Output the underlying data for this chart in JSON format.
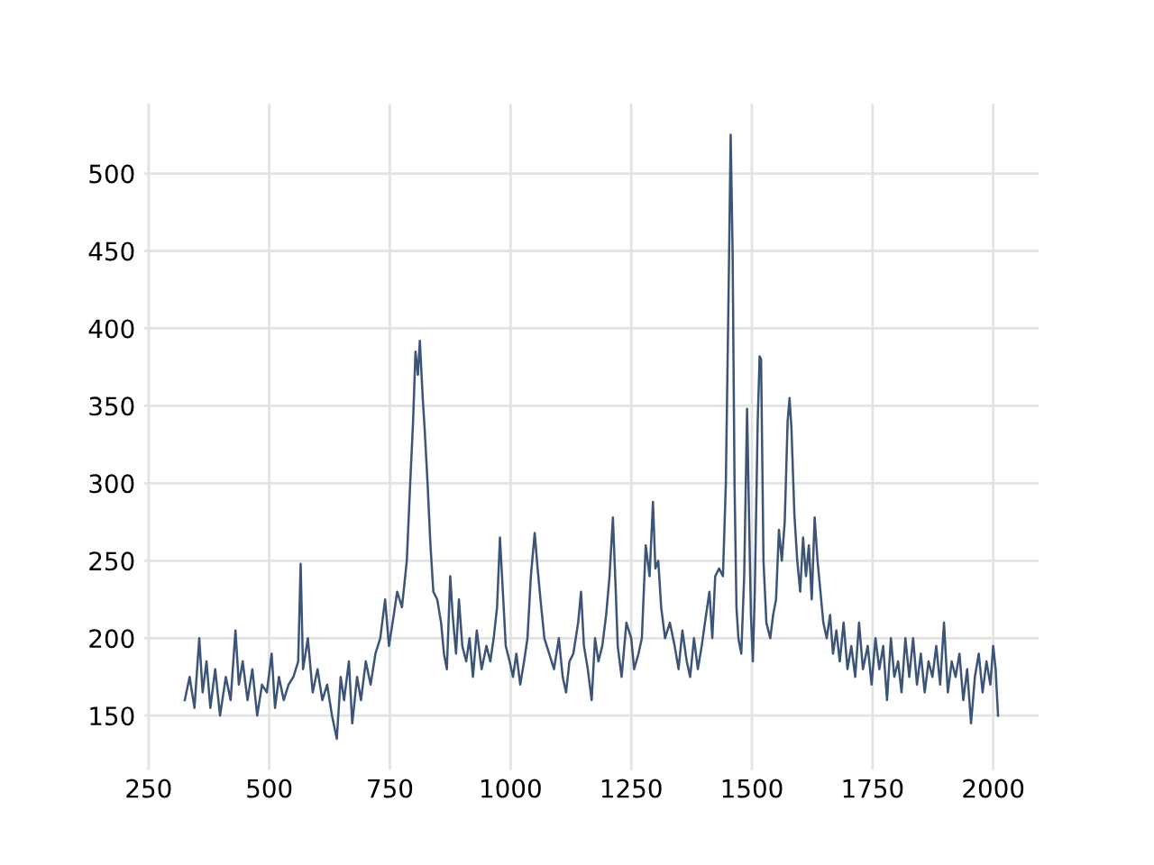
{
  "chart_data": {
    "type": "line",
    "x": [
      325,
      335,
      345,
      355,
      362,
      370,
      378,
      388,
      398,
      410,
      420,
      430,
      437,
      445,
      455,
      465,
      475,
      485,
      495,
      505,
      512,
      520,
      530,
      540,
      550,
      560,
      565,
      570,
      580,
      590,
      600,
      610,
      620,
      630,
      640,
      648,
      655,
      665,
      672,
      682,
      690,
      700,
      710,
      720,
      730,
      740,
      748,
      758,
      765,
      775,
      785,
      792,
      798,
      803,
      808,
      812,
      818,
      822,
      828,
      834,
      840,
      848,
      856,
      862,
      868,
      875,
      880,
      887,
      893,
      900,
      908,
      915,
      922,
      930,
      940,
      950,
      958,
      965,
      972,
      978,
      984,
      990,
      998,
      1005,
      1012,
      1020,
      1028,
      1035,
      1042,
      1050,
      1056,
      1062,
      1070,
      1080,
      1090,
      1100,
      1108,
      1115,
      1122,
      1130,
      1140,
      1146,
      1152,
      1160,
      1168,
      1175,
      1182,
      1190,
      1198,
      1205,
      1212,
      1218,
      1222,
      1230,
      1240,
      1250,
      1256,
      1265,
      1272,
      1280,
      1288,
      1295,
      1300,
      1306,
      1312,
      1320,
      1330,
      1340,
      1348,
      1356,
      1365,
      1372,
      1380,
      1388,
      1396,
      1405,
      1412,
      1418,
      1424,
      1432,
      1440,
      1446,
      1452,
      1456,
      1460,
      1464,
      1468,
      1472,
      1478,
      1484,
      1490,
      1494,
      1498,
      1502,
      1506,
      1512,
      1516,
      1519,
      1524,
      1530,
      1538,
      1544,
      1550,
      1556,
      1562,
      1568,
      1574,
      1578,
      1582,
      1588,
      1594,
      1600,
      1606,
      1612,
      1618,
      1624,
      1630,
      1636,
      1642,
      1648,
      1655,
      1662,
      1668,
      1675,
      1682,
      1690,
      1698,
      1706,
      1714,
      1722,
      1730,
      1740,
      1748,
      1756,
      1764,
      1772,
      1780,
      1788,
      1795,
      1803,
      1810,
      1818,
      1826,
      1834,
      1842,
      1850,
      1858,
      1866,
      1874,
      1882,
      1890,
      1898,
      1906,
      1914,
      1922,
      1930,
      1938,
      1946,
      1954,
      1962,
      1970,
      1978,
      1986,
      1994,
      2000,
      2005,
      2010
    ],
    "series": [
      {
        "color": "#3b5478",
        "values": [
          160,
          175,
          155,
          200,
          165,
          185,
          155,
          180,
          150,
          175,
          160,
          205,
          170,
          185,
          160,
          180,
          150,
          170,
          165,
          190,
          155,
          175,
          160,
          170,
          175,
          185,
          248,
          180,
          200,
          165,
          180,
          160,
          170,
          150,
          135,
          175,
          160,
          185,
          145,
          175,
          160,
          185,
          170,
          190,
          200,
          225,
          195,
          215,
          230,
          220,
          250,
          300,
          340,
          385,
          370,
          392,
          355,
          335,
          300,
          260,
          230,
          225,
          210,
          190,
          180,
          240,
          215,
          190,
          225,
          195,
          185,
          200,
          175,
          205,
          180,
          195,
          185,
          200,
          220,
          265,
          230,
          195,
          185,
          175,
          190,
          170,
          185,
          200,
          240,
          268,
          245,
          225,
          200,
          190,
          180,
          200,
          175,
          165,
          185,
          190,
          210,
          230,
          195,
          180,
          160,
          200,
          185,
          195,
          215,
          240,
          278,
          230,
          195,
          175,
          210,
          200,
          180,
          190,
          200,
          260,
          240,
          288,
          245,
          250,
          220,
          200,
          210,
          195,
          180,
          205,
          185,
          175,
          200,
          180,
          195,
          215,
          230,
          200,
          240,
          245,
          240,
          300,
          430,
          525,
          450,
          300,
          220,
          200,
          190,
          240,
          348,
          280,
          215,
          185,
          230,
          340,
          382,
          380,
          250,
          210,
          200,
          215,
          225,
          270,
          250,
          275,
          340,
          355,
          335,
          280,
          250,
          230,
          265,
          240,
          260,
          225,
          278,
          250,
          230,
          210,
          200,
          215,
          190,
          205,
          185,
          210,
          180,
          195,
          175,
          210,
          180,
          195,
          170,
          200,
          180,
          195,
          160,
          200,
          175,
          185,
          165,
          200,
          175,
          200,
          170,
          190,
          165,
          185,
          175,
          195,
          170,
          210,
          165,
          185,
          175,
          190,
          160,
          180,
          145,
          175,
          190,
          165,
          185,
          170,
          195,
          180,
          150
        ]
      }
    ],
    "xlim": [
      241,
      2094
    ],
    "ylim": [
      115,
      545
    ],
    "xticks": [
      250,
      500,
      750,
      1000,
      1250,
      1500,
      1750,
      2000
    ],
    "yticks": [
      150,
      200,
      250,
      300,
      350,
      400,
      450,
      500
    ],
    "grid": true,
    "line_style": "solid",
    "marker": "none"
  }
}
